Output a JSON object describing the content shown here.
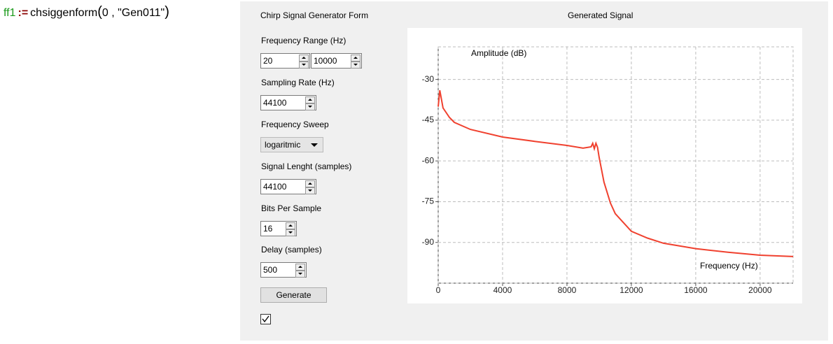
{
  "formula": {
    "variable": "ff1",
    "assign": ":=",
    "function": "chsiggenform",
    "open": "(",
    "arguments": "0 , \"Gen011\"",
    "close": ")"
  },
  "form": {
    "title": "Chirp Signal Generator Form",
    "frequency_range": {
      "label": "Frequency Range (Hz)",
      "min": "20",
      "max": "10000"
    },
    "sampling_rate": {
      "label": "Sampling Rate (Hz)",
      "value": "44100"
    },
    "frequency_sweep": {
      "label": "Frequency Sweep",
      "value": "logaritmic"
    },
    "signal_length": {
      "label": "Signal Lenght (samples)",
      "value": "44100"
    },
    "bits_per_sample": {
      "label": "Bits Per Sample",
      "value": "16"
    },
    "delay": {
      "label": "Delay (samples)",
      "value": "500"
    },
    "button": "Generate",
    "checkbox_checked": true
  },
  "chart_data": {
    "type": "line",
    "title": "Generated Signal",
    "x_label": "Frequency (Hz)",
    "y_label": "Amplitude (dB)",
    "color": "#f0412f",
    "x": [
      0,
      100,
      300,
      700,
      1000,
      2000,
      4000,
      6000,
      8000,
      9000,
      9500,
      9600,
      9700,
      9800,
      9900,
      10000,
      10300,
      10700,
      11000,
      12000,
      13000,
      14000,
      16000,
      18000,
      20000,
      22050
    ],
    "values": [
      -40,
      -34,
      -40.5,
      -44,
      -45.8,
      -48.4,
      -51.2,
      -52.8,
      -54.3,
      -55.3,
      -54.8,
      -53.5,
      -55.5,
      -53.5,
      -55,
      -58.7,
      -67.8,
      -75.5,
      -79.4,
      -85.9,
      -88.4,
      -90.3,
      -92.3,
      -93.6,
      -94.7,
      -95.2
    ],
    "xlim": [
      0,
      22050
    ],
    "ylim": [
      -105,
      -18
    ],
    "xticks": [
      0,
      4000,
      8000,
      12000,
      16000,
      20000
    ],
    "yticks": [
      -30,
      -45,
      -60,
      -75,
      -90
    ],
    "grid": true
  }
}
